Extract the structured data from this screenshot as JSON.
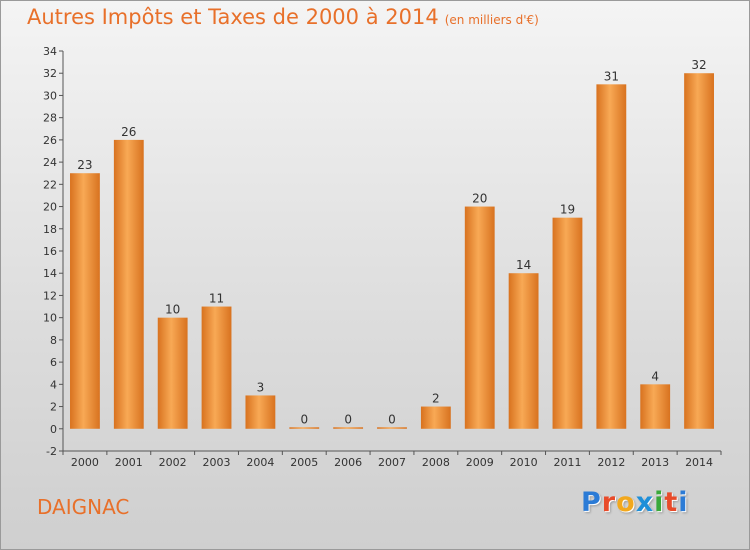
{
  "header": {
    "title": "Autres Impôts et Taxes de 2000 à 2014",
    "unit": "(en milliers d'€)"
  },
  "footer": {
    "commune": "DAIGNAC",
    "logo": "Proxiti",
    "logo_colors": [
      "#2b7bd6",
      "#e84b2a",
      "#f2a81d",
      "#1f8fd8",
      "#3aa93a",
      "#e84b2a",
      "#2b7bd6"
    ]
  },
  "colors": {
    "bar_light": "#f8a955",
    "bar_dark": "#d8721f",
    "title": "#e8702a"
  },
  "chart_data": {
    "type": "bar",
    "title": "Autres Impôts et Taxes de 2000 à 2014",
    "subtitle": "(en milliers d'€)",
    "xlabel": "",
    "ylabel": "",
    "categories": [
      "2000",
      "2001",
      "2002",
      "2003",
      "2004",
      "2005",
      "2006",
      "2007",
      "2008",
      "2009",
      "2010",
      "2011",
      "2012",
      "2013",
      "2014"
    ],
    "values": [
      23,
      26,
      10,
      11,
      3,
      0,
      0,
      0,
      2,
      20,
      14,
      19,
      31,
      4,
      32
    ],
    "ylim": [
      -2,
      34
    ],
    "yticks": [
      -2,
      0,
      2,
      4,
      6,
      8,
      10,
      12,
      14,
      16,
      18,
      20,
      22,
      24,
      26,
      28,
      30,
      32,
      34
    ],
    "grid": false,
    "legend": "none"
  }
}
